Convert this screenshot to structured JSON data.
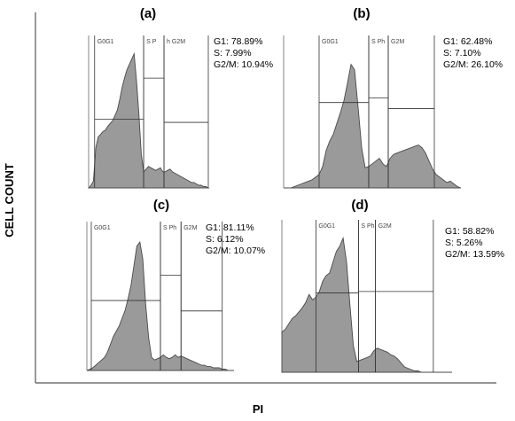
{
  "figure": {
    "ylabel": "CELL COUNT",
    "xlabel": "PI"
  },
  "chart_data": [
    {
      "type": "area",
      "panel": "(a)",
      "gate_labels": [
        "G0G1",
        "S P",
        "h G2M"
      ],
      "stats": [
        "G1: 78.89%",
        "S: 7.99%",
        "G2/M: 10.94%"
      ],
      "g1": 78.89,
      "s": 7.99,
      "g2m": 10.94,
      "gates": {
        "g1": [
          0.05,
          0.46
        ],
        "s": [
          0.46,
          0.63
        ],
        "g2m": [
          0.63,
          1.0
        ],
        "heights": [
          0.45,
          0.72,
          0.43
        ]
      },
      "x": [
        0,
        0.02,
        0.04,
        0.06,
        0.08,
        0.1,
        0.12,
        0.14,
        0.16,
        0.18,
        0.2,
        0.22,
        0.24,
        0.26,
        0.28,
        0.3,
        0.32,
        0.34,
        0.36,
        0.38,
        0.4,
        0.42,
        0.44,
        0.46,
        0.48,
        0.5,
        0.52,
        0.54,
        0.56,
        0.58,
        0.6,
        0.62,
        0.64,
        0.66,
        0.68,
        0.7,
        0.72,
        0.74,
        0.76,
        0.78,
        0.8,
        0.82,
        0.84,
        0.86,
        0.88,
        0.9,
        0.92,
        0.94,
        0.96,
        0.98,
        1.0
      ],
      "values": [
        0,
        0.02,
        0.05,
        0.3,
        0.38,
        0.4,
        0.42,
        0.43,
        0.46,
        0.48,
        0.5,
        0.54,
        0.58,
        0.66,
        0.75,
        0.82,
        0.88,
        0.92,
        0.96,
        1.0,
        0.8,
        0.55,
        0.25,
        0.12,
        0.14,
        0.16,
        0.15,
        0.14,
        0.13,
        0.14,
        0.15,
        0.12,
        0.12,
        0.13,
        0.14,
        0.12,
        0.11,
        0.1,
        0.09,
        0.08,
        0.07,
        0.06,
        0.05,
        0.04,
        0.04,
        0.03,
        0.02,
        0.02,
        0.01,
        0.01,
        0
      ]
    },
    {
      "type": "area",
      "panel": "(b)",
      "gate_labels": [
        "G0G1",
        "S Ph",
        "G2M"
      ],
      "stats": [
        "G1: 62.48%",
        "S: 7.10%",
        "G2/M: 26.10%"
      ],
      "g1": 62.48,
      "s": 7.1,
      "g2m": 26.1,
      "gates": {
        "g1": [
          0.2,
          0.48
        ],
        "s": [
          0.48,
          0.59
        ],
        "g2m": [
          0.59,
          0.85
        ],
        "heights": [
          0.56,
          0.59,
          0.52
        ]
      },
      "x": [
        0,
        0.02,
        0.04,
        0.06,
        0.08,
        0.1,
        0.12,
        0.14,
        0.16,
        0.18,
        0.2,
        0.22,
        0.24,
        0.26,
        0.28,
        0.3,
        0.32,
        0.34,
        0.36,
        0.38,
        0.4,
        0.42,
        0.44,
        0.46,
        0.48,
        0.5,
        0.52,
        0.54,
        0.56,
        0.58,
        0.6,
        0.62,
        0.64,
        0.66,
        0.68,
        0.7,
        0.72,
        0.74,
        0.76,
        0.78,
        0.8,
        0.82,
        0.84,
        0.86,
        0.88,
        0.9,
        0.92,
        0.94,
        0.96,
        0.98,
        1.0
      ],
      "values": [
        0,
        0,
        0,
        0.01,
        0.02,
        0.03,
        0.04,
        0.05,
        0.06,
        0.08,
        0.1,
        0.16,
        0.28,
        0.35,
        0.4,
        0.48,
        0.56,
        0.65,
        0.78,
        0.92,
        0.88,
        0.6,
        0.3,
        0.15,
        0.16,
        0.18,
        0.2,
        0.22,
        0.18,
        0.16,
        0.22,
        0.25,
        0.26,
        0.27,
        0.28,
        0.29,
        0.3,
        0.31,
        0.32,
        0.3,
        0.26,
        0.2,
        0.14,
        0.1,
        0.08,
        0.06,
        0.04,
        0.05,
        0.03,
        0.01,
        0
      ]
    },
    {
      "type": "area",
      "panel": "(c)",
      "gate_labels": [
        "G0G1",
        "S Ph",
        "G2M"
      ],
      "stats": [
        "G1: 81.11%",
        "S: 6.12%",
        "G2/M: 10.07%"
      ],
      "g1": 81.11,
      "s": 6.12,
      "g2m": 10.07,
      "gates": {
        "g1": [
          0.03,
          0.5
        ],
        "s": [
          0.5,
          0.64
        ],
        "g2m": [
          0.64,
          0.92
        ],
        "heights": [
          0.47,
          0.64,
          0.4
        ]
      },
      "x": [
        0,
        0.02,
        0.04,
        0.06,
        0.08,
        0.1,
        0.12,
        0.14,
        0.16,
        0.18,
        0.2,
        0.22,
        0.24,
        0.26,
        0.28,
        0.3,
        0.32,
        0.34,
        0.36,
        0.38,
        0.4,
        0.42,
        0.44,
        0.46,
        0.48,
        0.5,
        0.52,
        0.54,
        0.56,
        0.58,
        0.6,
        0.62,
        0.64,
        0.66,
        0.68,
        0.7,
        0.72,
        0.74,
        0.76,
        0.78,
        0.8,
        0.82,
        0.84,
        0.86,
        0.88,
        0.9,
        0.92,
        0.94,
        0.96,
        0.98,
        1.0
      ],
      "values": [
        0,
        0.01,
        0.02,
        0.04,
        0.06,
        0.08,
        0.1,
        0.14,
        0.2,
        0.26,
        0.3,
        0.34,
        0.4,
        0.46,
        0.55,
        0.65,
        0.8,
        0.95,
        0.98,
        0.85,
        0.5,
        0.25,
        0.1,
        0.08,
        0.09,
        0.1,
        0.12,
        0.1,
        0.09,
        0.1,
        0.12,
        0.1,
        0.11,
        0.1,
        0.09,
        0.08,
        0.07,
        0.06,
        0.05,
        0.04,
        0.04,
        0.03,
        0.03,
        0.02,
        0.02,
        0.02,
        0.01,
        0.01,
        0,
        0,
        0
      ]
    },
    {
      "type": "area",
      "panel": "(d)",
      "gate_labels": [
        "G0G1",
        "S Ph",
        "G2M"
      ],
      "stats": [
        "G1: 58.82%",
        "S: 5.26%",
        "G2/M: 13.59%"
      ],
      "g1": 58.82,
      "s": 5.26,
      "g2m": 13.59,
      "gates": {
        "g1": [
          0.2,
          0.45
        ],
        "s": [
          0.45,
          0.55
        ],
        "g2m": [
          0.55,
          0.89
        ],
        "heights": [
          0.52,
          0.53,
          0.53
        ]
      },
      "x": [
        0,
        0.02,
        0.04,
        0.06,
        0.08,
        0.1,
        0.12,
        0.14,
        0.16,
        0.18,
        0.2,
        0.22,
        0.24,
        0.26,
        0.28,
        0.3,
        0.32,
        0.34,
        0.36,
        0.38,
        0.4,
        0.42,
        0.44,
        0.46,
        0.48,
        0.5,
        0.52,
        0.54,
        0.56,
        0.58,
        0.6,
        0.62,
        0.64,
        0.66,
        0.68,
        0.7,
        0.72,
        0.74,
        0.76,
        0.78,
        0.8,
        0.82,
        0.84,
        0.86,
        0.88,
        0.9,
        0.92,
        0.94,
        0.96,
        0.98,
        1.0
      ],
      "values": [
        0.3,
        0.32,
        0.36,
        0.4,
        0.42,
        0.45,
        0.48,
        0.52,
        0.58,
        0.54,
        0.56,
        0.6,
        0.68,
        0.72,
        0.74,
        0.82,
        0.9,
        0.94,
        1.0,
        0.82,
        0.5,
        0.2,
        0.08,
        0.09,
        0.1,
        0.11,
        0.12,
        0.16,
        0.18,
        0.17,
        0.16,
        0.15,
        0.13,
        0.12,
        0.1,
        0.07,
        0.04,
        0.03,
        0.02,
        0.01,
        0.01,
        0,
        0,
        0,
        0,
        0,
        0,
        0,
        0,
        0,
        0
      ]
    }
  ]
}
